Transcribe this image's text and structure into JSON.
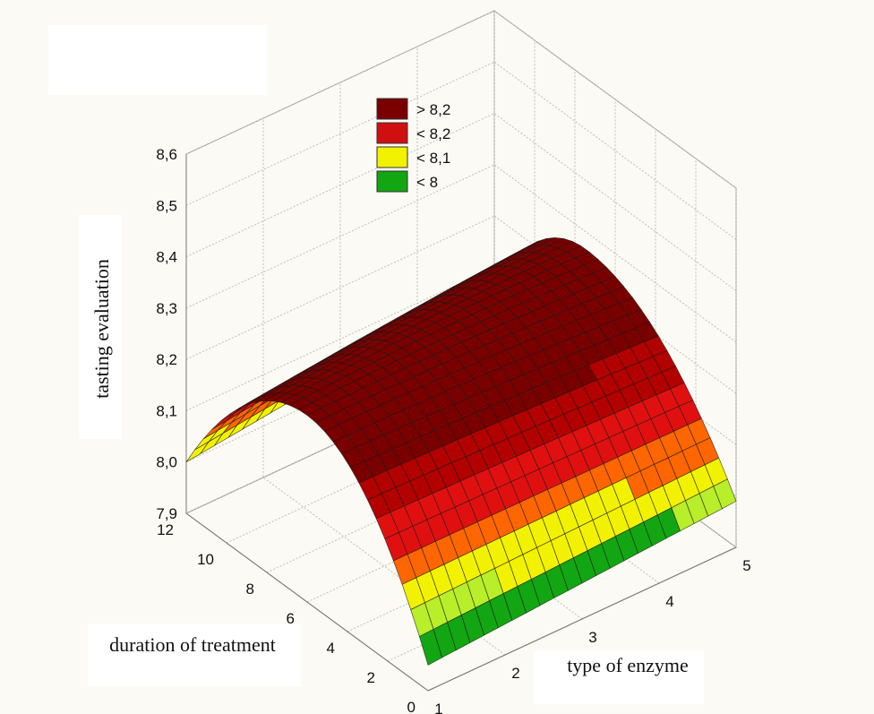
{
  "chart_data": {
    "type": "surface3d",
    "zlabel": "tasting evaluation",
    "xlabel": "type of enzyme",
    "ylabel": "duration of treatment",
    "xlim": [
      1,
      5
    ],
    "ylim": [
      0,
      12
    ],
    "zlim": [
      7.9,
      8.6
    ],
    "x_ticks": [
      "1",
      "2",
      "3",
      "4",
      "5"
    ],
    "y_ticks": [
      "0",
      "2",
      "4",
      "6",
      "8",
      "10",
      "12"
    ],
    "z_ticks": [
      "7,9",
      "8,0",
      "8,1",
      "8,2",
      "8,3",
      "8,4",
      "8,5",
      "8,6"
    ],
    "legend": [
      {
        "label": "> 8,2",
        "color": "#7a0000"
      },
      {
        "label": "< 8,2",
        "color": "#d01010"
      },
      {
        "label": "< 8,1",
        "color": "#f2f200"
      },
      {
        "label": "< 8",
        "color": "#12a612"
      }
    ],
    "legend_position": "top-center",
    "grid": true,
    "surface": {
      "z_at_x1_y0": 7.95,
      "z_at_x5_y0": 7.99,
      "z_at_x1_y12": 8.0,
      "z_at_x5_y12": 8.07,
      "z_max": 8.27,
      "y_at_max": 6
    }
  }
}
